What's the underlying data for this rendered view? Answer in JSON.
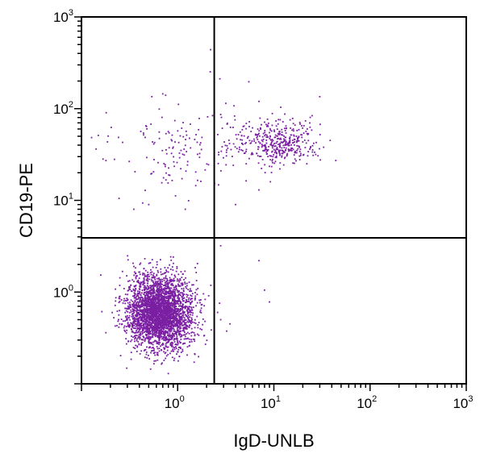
{
  "chart_data": {
    "type": "scatter",
    "title": "",
    "xlabel": "IgD-UNLB",
    "ylabel": "CD19-PE",
    "x_scale": "log",
    "y_scale": "log",
    "xlim": [
      0.1,
      1000
    ],
    "ylim": [
      0.1,
      1000
    ],
    "grid": false,
    "point_color": "#7a1fa2",
    "x_ticks": [
      {
        "value": 1,
        "base": "10",
        "exp": "0"
      },
      {
        "value": 10,
        "base": "10",
        "exp": "1"
      },
      {
        "value": 100,
        "base": "10",
        "exp": "2"
      },
      {
        "value": 1000,
        "base": "10",
        "exp": "3"
      }
    ],
    "y_ticks": [
      {
        "value": 1,
        "base": "10",
        "exp": "0"
      },
      {
        "value": 10,
        "base": "10",
        "exp": "1"
      },
      {
        "value": 100,
        "base": "10",
        "exp": "2"
      },
      {
        "value": 1000,
        "base": "10",
        "exp": "3"
      }
    ],
    "quadrant_gates": {
      "x": 2.4,
      "y": 3.9
    },
    "populations": [
      {
        "center_x": 0.65,
        "center_y": 0.6,
        "spread_x_log": 0.17,
        "spread_y_log": 0.2,
        "count": 3200
      },
      {
        "center_x": 10,
        "center_y": 42,
        "spread_x_log": 0.22,
        "spread_y_log": 0.12,
        "count": 420
      },
      {
        "center_x": 1.1,
        "center_y": 38,
        "spread_x_log": 0.35,
        "spread_y_log": 0.25,
        "count": 150
      }
    ],
    "sparse_points": [
      {
        "x": 2.2,
        "y": 440
      },
      {
        "x": 0.7,
        "y": 145
      },
      {
        "x": 0.75,
        "y": 140
      },
      {
        "x": 30,
        "y": 135
      },
      {
        "x": 7,
        "y": 120
      },
      {
        "x": 2.8,
        "y": 3.2
      },
      {
        "x": 7,
        "y": 2.2
      },
      {
        "x": 8,
        "y": 1.05
      },
      {
        "x": 9,
        "y": 0.78
      },
      {
        "x": 3.5,
        "y": 0.45
      },
      {
        "x": 2.8,
        "y": 0.5
      },
      {
        "x": 2.6,
        "y": 0.6
      },
      {
        "x": 0.22,
        "y": 28
      },
      {
        "x": 0.35,
        "y": 8
      },
      {
        "x": 0.5,
        "y": 9
      },
      {
        "x": 1.2,
        "y": 8
      },
      {
        "x": 4,
        "y": 9
      },
      {
        "x": 7,
        "y": 13
      }
    ]
  }
}
